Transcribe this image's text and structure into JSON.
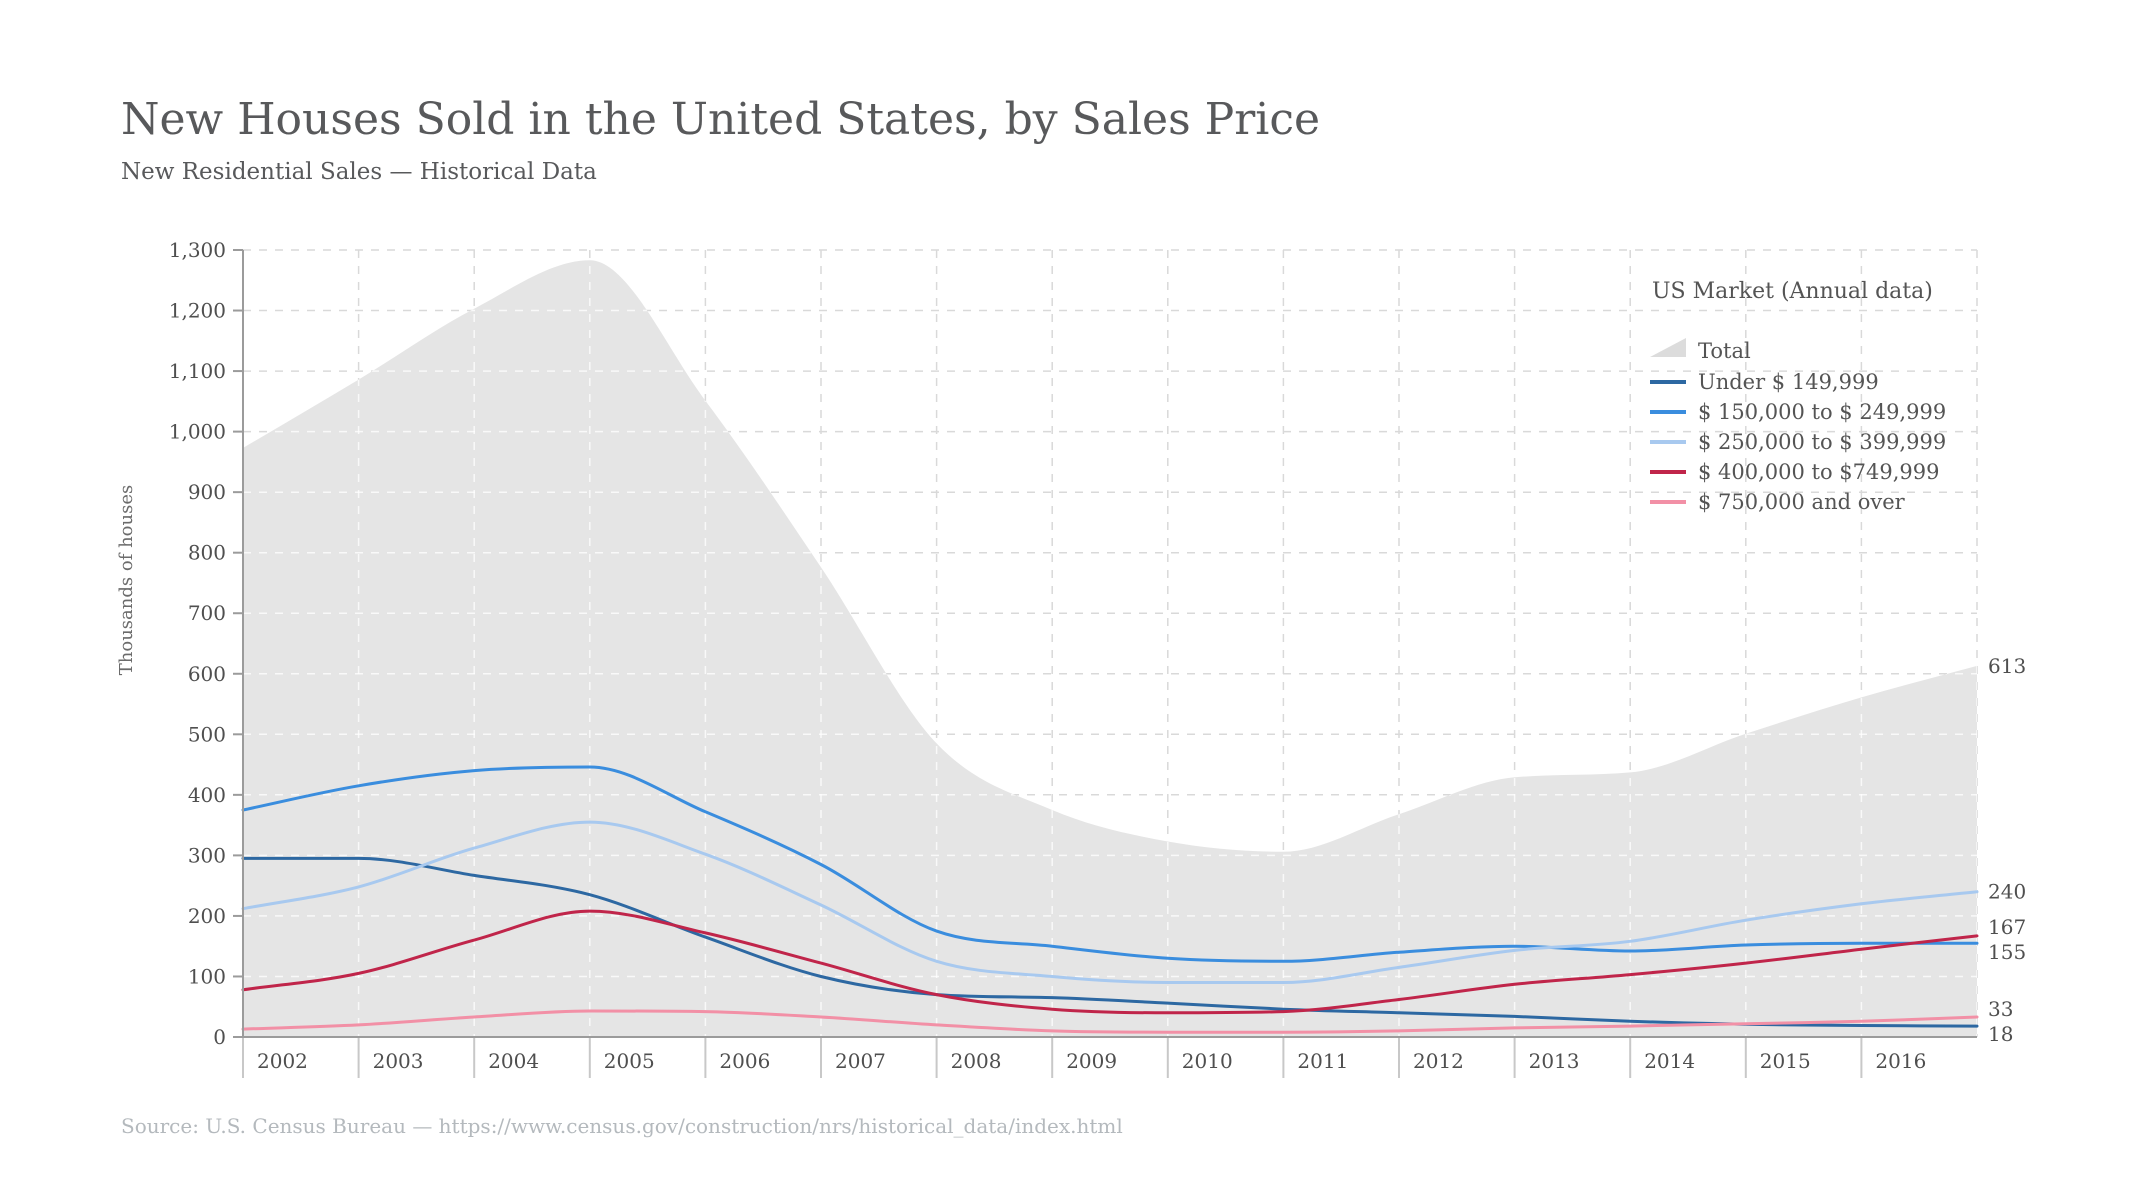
{
  "page": {
    "title": "New Houses Sold in the United States, by Sales Price",
    "subtitle": "New Residential Sales — Historical Data",
    "source": "Source:  U.S. Census Bureau — https://www.census.gov/construction/nrs/historical_data/index.html"
  },
  "chart_data": {
    "type": "area",
    "title": "New Houses Sold in the United States, by Sales Price",
    "subtitle": "New Residential Sales — Historical Data",
    "xlabel": "",
    "ylabel": "Thousands of houses",
    "ylim": [
      0,
      1300
    ],
    "y_tick_step": 100,
    "grid": true,
    "legend_position": "top-right",
    "legend_title": "US Market (Annual data)",
    "x": [
      2002,
      2003,
      2004,
      2005,
      2006,
      2007,
      2008,
      2009,
      2010,
      2011,
      2012,
      2013,
      2014,
      2015,
      2016,
      2017
    ],
    "x_tick_labels": [
      "2002",
      "2003",
      "2004",
      "2005",
      "2006",
      "2007",
      "2008",
      "2009",
      "2010",
      "2011",
      "2012",
      "2013",
      "2014",
      "2015",
      "2016"
    ],
    "series": [
      {
        "key": "total",
        "name": "Total",
        "type": "area",
        "color": "#e5e5e5",
        "swatch_color": "#dcdcdc",
        "values": [
          973,
          1086,
          1203,
          1283,
          1051,
          776,
          485,
          375,
          323,
          306,
          368,
          429,
          437,
          501,
          561,
          613
        ],
        "end_label": "613"
      },
      {
        "key": "under-150k",
        "name": "Under $ 149,999",
        "type": "line",
        "color": "#2d68a2",
        "values": [
          295,
          295,
          267,
          235,
          165,
          100,
          70,
          65,
          56,
          46,
          40,
          34,
          26,
          21,
          19,
          18
        ],
        "end_label": "18"
      },
      {
        "key": "150k-249k",
        "name": "$ 150,000 to $ 249,999",
        "type": "line",
        "color": "#3a8dde",
        "values": [
          375,
          415,
          440,
          446,
          372,
          285,
          175,
          150,
          130,
          125,
          140,
          150,
          142,
          152,
          155,
          155
        ],
        "end_label": "155"
      },
      {
        "key": "250k-399k",
        "name": "$ 250,000 to $ 399,999",
        "type": "line",
        "color": "#a8c9ef",
        "values": [
          212,
          248,
          312,
          355,
          302,
          218,
          125,
          100,
          90,
          90,
          115,
          143,
          158,
          193,
          220,
          240
        ],
        "end_label": "240"
      },
      {
        "key": "400k-749k",
        "name": "$ 400,000 to $749,999",
        "type": "line",
        "color": "#c0254a",
        "values": [
          78,
          105,
          160,
          208,
          172,
          122,
          70,
          46,
          40,
          42,
          62,
          87,
          103,
          122,
          145,
          167
        ],
        "end_label": "167"
      },
      {
        "key": "750k-plus",
        "name": "$ 750,000 and over",
        "type": "line",
        "color": "#f290a6",
        "values": [
          13,
          20,
          33,
          43,
          42,
          33,
          20,
          10,
          8,
          8,
          10,
          15,
          18,
          22,
          26,
          33
        ],
        "end_label": "33"
      }
    ]
  }
}
